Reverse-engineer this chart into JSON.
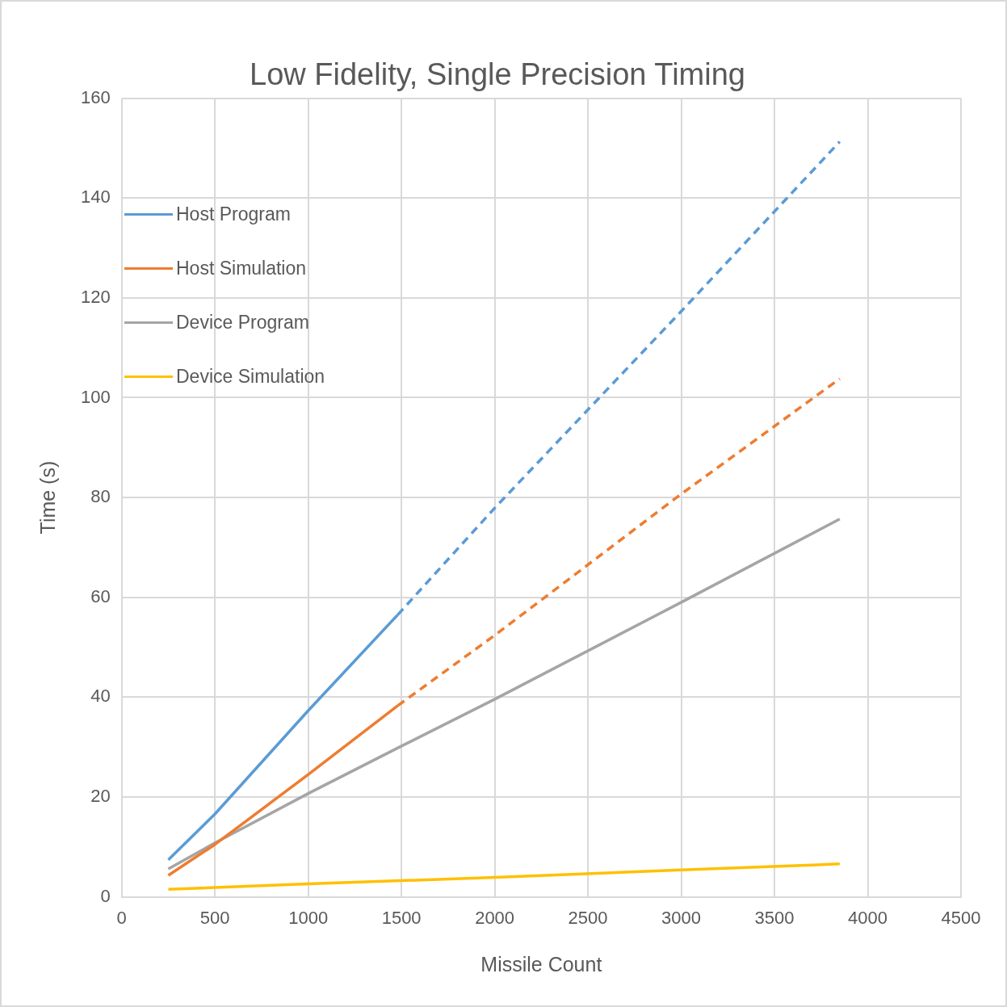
{
  "chart_data": {
    "type": "line",
    "title": "Low Fidelity, Single Precision Timing",
    "xlabel": "Missile Count",
    "ylabel": "Time (s)",
    "xlim": [
      0,
      4500
    ],
    "xticks": [
      0,
      500,
      1000,
      1500,
      2000,
      2500,
      3000,
      3500,
      4000,
      4500
    ],
    "ylim": [
      0,
      160
    ],
    "yticks": [
      0,
      20,
      40,
      60,
      80,
      100,
      120,
      140,
      160
    ],
    "grid": true,
    "legend": "top left",
    "marker": "none",
    "series": [
      {
        "name": "Host Program",
        "color": "#5b9bd5",
        "line_style": "solid",
        "x": [
          250,
          500,
          1000,
          1480
        ],
        "values": [
          7.4,
          16.6,
          37.3,
          56.5
        ]
      },
      {
        "name": "Host Simulation",
        "color": "#ed7d31",
        "line_style": "solid",
        "x": [
          250,
          500,
          1000,
          1480
        ],
        "values": [
          4.3,
          10.5,
          24.5,
          38.3
        ]
      },
      {
        "name": "Device Program",
        "color": "#a5a5a5",
        "line_style": "solid",
        "x": [
          250,
          500,
          1000,
          1500,
          2000,
          3000,
          3850
        ],
        "values": [
          5.6,
          10.8,
          20.7,
          30.2,
          39.6,
          59,
          75.7
        ]
      },
      {
        "name": "Device Simulation",
        "color": "#ffc000",
        "line_style": "solid",
        "x": [
          250,
          1000,
          2000,
          3000,
          3850
        ],
        "values": [
          1.5,
          2.6,
          3.9,
          5.4,
          6.6
        ]
      },
      {
        "color": "#5b9bd5",
        "line_style": "dashed",
        "x": [
          1480,
          2000,
          3000,
          3850
        ],
        "values": [
          56.5,
          77.9,
          117.3,
          151.3
        ]
      },
      {
        "color": "#ed7d31",
        "line_style": "dashed",
        "x": [
          1480,
          2000,
          3000,
          3850
        ],
        "values": [
          38.3,
          52.4,
          80.7,
          103.8
        ]
      }
    ]
  }
}
